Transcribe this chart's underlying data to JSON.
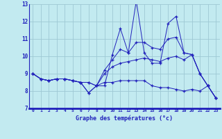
{
  "xlabel": "Graphe des températures (°c)",
  "xlim": [
    -0.5,
    23.5
  ],
  "ylim": [
    7,
    13
  ],
  "yticks": [
    7,
    8,
    9,
    10,
    11,
    12,
    13
  ],
  "xticks": [
    0,
    1,
    2,
    3,
    4,
    5,
    6,
    7,
    8,
    9,
    10,
    11,
    12,
    13,
    14,
    15,
    16,
    17,
    18,
    19,
    20,
    21,
    22,
    23
  ],
  "bg_color": "#c2eaf0",
  "line_color": "#2020bb",
  "grid_color": "#9ec8d4",
  "series": [
    [
      9.0,
      8.7,
      8.6,
      8.7,
      8.7,
      8.6,
      8.5,
      7.9,
      8.3,
      8.3,
      10.1,
      11.6,
      10.2,
      13.2,
      10.2,
      9.6,
      9.6,
      11.9,
      12.3,
      10.2,
      10.1,
      9.0,
      8.3,
      7.6
    ],
    [
      9.0,
      8.7,
      8.6,
      8.7,
      8.7,
      8.6,
      8.5,
      7.9,
      8.3,
      9.2,
      9.8,
      10.4,
      10.2,
      10.8,
      10.8,
      10.5,
      10.4,
      11.0,
      11.1,
      10.2,
      10.1,
      9.0,
      8.3,
      7.6
    ],
    [
      9.0,
      8.7,
      8.6,
      8.7,
      8.7,
      8.6,
      8.5,
      8.5,
      8.3,
      9.0,
      9.4,
      9.6,
      9.7,
      9.8,
      9.9,
      9.8,
      9.7,
      9.9,
      10.0,
      9.8,
      10.1,
      9.0,
      8.3,
      7.6
    ],
    [
      9.0,
      8.7,
      8.6,
      8.7,
      8.7,
      8.6,
      8.5,
      8.5,
      8.3,
      8.5,
      8.5,
      8.6,
      8.6,
      8.6,
      8.6,
      8.3,
      8.2,
      8.2,
      8.1,
      8.0,
      8.1,
      8.0,
      8.3,
      7.6
    ]
  ]
}
